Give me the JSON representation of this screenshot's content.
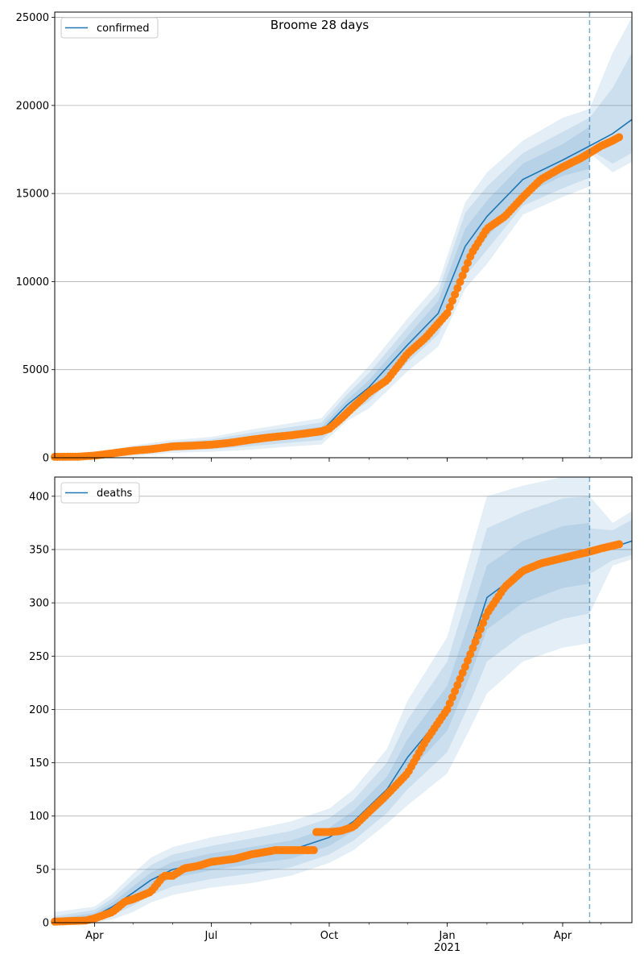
{
  "figure": {
    "title": "Broome 28 days"
  },
  "chart_data": [
    {
      "type": "line",
      "legend": "upper-left",
      "grid": "horizontal",
      "x_axis": {
        "type": "date",
        "range": [
          "2020-03-01",
          "2021-05-25"
        ],
        "tick_labels": [
          {
            "date": "2020-04-01",
            "label": "Apr"
          },
          {
            "date": "2020-07-01",
            "label": "Jul"
          },
          {
            "date": "2020-10-01",
            "label": "Oct"
          },
          {
            "date": "2021-01-01",
            "label": "Jan\n2021"
          },
          {
            "date": "2021-04-01",
            "label": "Apr"
          }
        ]
      },
      "ylim": [
        0,
        25300
      ],
      "yticks": [
        0,
        5000,
        10000,
        15000,
        20000,
        25000
      ],
      "forecast_start": "2021-04-22",
      "colors": {
        "line": "#1f77b4",
        "band": "#1f77b4",
        "observed": "#ff7f0e",
        "vline": "#1f77b4"
      },
      "series": [
        {
          "name": "confirmed",
          "kind": "model",
          "x": [
            "2020-03-01",
            "2020-04-01",
            "2020-05-01",
            "2020-06-01",
            "2020-07-01",
            "2020-08-01",
            "2020-09-01",
            "2020-09-25",
            "2020-10-15",
            "2020-11-01",
            "2020-12-01",
            "2020-12-25",
            "2021-01-15",
            "2021-02-01",
            "2021-03-01",
            "2021-04-01",
            "2021-04-22",
            "2021-05-10",
            "2021-05-25"
          ],
          "y": [
            50,
            120,
            400,
            640,
            760,
            1030,
            1300,
            1500,
            3000,
            4000,
            6400,
            8200,
            12000,
            13700,
            15800,
            16900,
            17700,
            18400,
            19200
          ],
          "bands": [
            {
              "lower": [
                0,
                80,
                300,
                520,
                620,
                840,
                1080,
                1250,
                2700,
                3600,
                5900,
                7600,
                11000,
                12500,
                14900,
                16000,
                16400,
                17300,
                18200
              ],
              "upper": [
                100,
                170,
                500,
                760,
                900,
                1220,
                1520,
                1750,
                3300,
                4400,
                6900,
                8900,
                13000,
                14600,
                16700,
                17800,
                18800,
                19600,
                20500
              ]
            },
            {
              "lower": [
                0,
                40,
                200,
                400,
                480,
                650,
                860,
                1000,
                2400,
                3200,
                5400,
                7000,
                10300,
                11800,
                14300,
                15300,
                15900,
                16700,
                17300
              ],
              "upper": [
                150,
                220,
                600,
                880,
                1040,
                1410,
                1740,
                2000,
                3600,
                4800,
                7400,
                9400,
                13900,
                15400,
                17300,
                18500,
                19300,
                20800,
                22000
              ],
              "lower_post": [
                17500,
                16700,
                17300
              ],
              "upper_post": [
                19300,
                21000,
                23000
              ]
            },
            {
              "lower": [
                0,
                0,
                100,
                280,
                340,
                460,
                640,
                750,
                2100,
                2800,
                4900,
                6300,
                9600,
                11000,
                13800,
                14800,
                15400,
                16200,
                16800
              ],
              "upper": [
                200,
                280,
                700,
                1000,
                1180,
                1600,
                1960,
                2250,
                3900,
                5200,
                7900,
                9900,
                14500,
                16200,
                18000,
                19300,
                19800,
                22000,
                25000
              ],
              "lower_post": [
                17300,
                16200,
                16800
              ],
              "upper_post": [
                19800,
                23000,
                25000
              ]
            }
          ]
        },
        {
          "name": "",
          "kind": "observed",
          "x": [
            "2020-03-01",
            "2020-03-20",
            "2020-04-01",
            "2020-04-15",
            "2020-05-01",
            "2020-05-15",
            "2020-06-01",
            "2020-06-15",
            "2020-07-01",
            "2020-07-15",
            "2020-08-01",
            "2020-08-15",
            "2020-09-01",
            "2020-09-15",
            "2020-09-25",
            "2020-10-01",
            "2020-10-10",
            "2020-10-20",
            "2020-11-01",
            "2020-11-15",
            "2020-12-01",
            "2020-12-15",
            "2021-01-01",
            "2021-01-10",
            "2021-01-20",
            "2021-02-01",
            "2021-02-15",
            "2021-03-01",
            "2021-03-15",
            "2021-04-01",
            "2021-04-15",
            "2021-04-22",
            "2021-05-01",
            "2021-05-10",
            "2021-05-15"
          ],
          "y": [
            50,
            60,
            120,
            250,
            400,
            480,
            640,
            680,
            740,
            840,
            1020,
            1150,
            1270,
            1400,
            1500,
            1650,
            2200,
            2900,
            3700,
            4400,
            5900,
            6800,
            8200,
            9800,
            11600,
            13000,
            13700,
            14800,
            15800,
            16500,
            17000,
            17300,
            17700,
            18000,
            18200
          ]
        }
      ]
    },
    {
      "type": "line",
      "legend": "upper-left",
      "grid": "horizontal",
      "x_axis": {
        "type": "date",
        "range": [
          "2020-03-01",
          "2021-05-25"
        ],
        "tick_labels": [
          {
            "date": "2020-04-01",
            "label": "Apr"
          },
          {
            "date": "2020-07-01",
            "label": "Jul"
          },
          {
            "date": "2020-10-01",
            "label": "Oct"
          },
          {
            "date": "2021-01-01",
            "label": "Jan\n2021"
          },
          {
            "date": "2021-04-01",
            "label": "Apr"
          }
        ]
      },
      "ylim": [
        0,
        418
      ],
      "yticks": [
        0,
        50,
        100,
        150,
        200,
        250,
        300,
        350,
        400
      ],
      "forecast_start": "2021-04-22",
      "colors": {
        "line": "#1f77b4",
        "band": "#1f77b4",
        "observed": "#ff7f0e",
        "vline": "#1f77b4"
      },
      "series": [
        {
          "name": "deaths",
          "kind": "model",
          "x": [
            "2020-03-01",
            "2020-04-01",
            "2020-04-15",
            "2020-05-01",
            "2020-05-15",
            "2020-06-01",
            "2020-07-01",
            "2020-08-01",
            "2020-09-01",
            "2020-10-01",
            "2020-10-20",
            "2020-11-15",
            "2020-12-01",
            "2021-01-01",
            "2021-01-20",
            "2021-02-01",
            "2021-03-01",
            "2021-04-01",
            "2021-04-22",
            "2021-05-10",
            "2021-05-25"
          ],
          "y": [
            2,
            6,
            15,
            28,
            40,
            50,
            57,
            63,
            68,
            80,
            95,
            125,
            155,
            200,
            260,
            305,
            330,
            345,
            348,
            352,
            358
          ],
          "bands": [
            {
              "lower": [
                0,
                3,
                11,
                22,
                33,
                42,
                49,
                55,
                60,
                72,
                86,
                114,
                140,
                180,
                235,
                275,
                300,
                314,
                318,
                346,
                350
              ],
              "upper": [
                4,
                9,
                19,
                34,
                47,
                57,
                65,
                71,
                77,
                89,
                105,
                137,
                172,
                222,
                290,
                335,
                358,
                372,
                375,
                360,
                368
              ]
            },
            {
              "lower": [
                0,
                1,
                7,
                16,
                26,
                34,
                41,
                46,
                52,
                64,
                77,
                103,
                125,
                160,
                210,
                245,
                270,
                285,
                290,
                340,
                345
              ],
              "upper": [
                6,
                12,
                23,
                40,
                54,
                64,
                72,
                79,
                86,
                98,
                115,
                150,
                190,
                245,
                320,
                370,
                385,
                398,
                400,
                368,
                378
              ],
              "lower_post": [
                327,
                340,
                345
              ],
              "upper_post": [
                370,
                368,
                378
              ]
            },
            {
              "lower": [
                0,
                0,
                3,
                10,
                19,
                26,
                33,
                37,
                44,
                56,
                68,
                93,
                110,
                140,
                185,
                215,
                245,
                258,
                262,
                335,
                341
              ],
              "upper": [
                10,
                15,
                27,
                46,
                61,
                71,
                80,
                87,
                95,
                107,
                125,
                163,
                208,
                268,
                350,
                400,
                410,
                418,
                418,
                375,
                386
              ],
              "lower_post": [
                290,
                335,
                341
              ],
              "upper_post": [
                400,
                375,
                386
              ]
            }
          ]
        },
        {
          "name": "",
          "kind": "observed",
          "x": [
            "2020-03-01",
            "2020-03-25",
            "2020-04-01",
            "2020-04-15",
            "2020-04-25",
            "2020-05-01",
            "2020-05-15",
            "2020-05-25",
            "2020-06-01",
            "2020-06-10",
            "2020-06-20",
            "2020-07-01",
            "2020-07-20",
            "2020-08-01",
            "2020-08-20",
            "2020-09-01",
            "2020-09-20",
            "2020-09-21",
            "2020-10-01",
            "2020-10-10",
            "2020-10-20",
            "2020-11-01",
            "2020-11-15",
            "2020-12-01",
            "2020-12-15",
            "2021-01-01",
            "2021-01-15",
            "2021-02-01",
            "2021-02-15",
            "2021-03-01",
            "2021-03-15",
            "2021-04-01",
            "2021-04-22",
            "2021-05-01",
            "2021-05-15"
          ],
          "y": [
            1,
            2,
            4,
            10,
            20,
            22,
            29,
            44,
            44,
            51,
            53,
            57,
            60,
            64,
            68,
            68,
            68,
            85,
            85,
            86,
            90,
            104,
            120,
            140,
            170,
            200,
            240,
            290,
            315,
            330,
            337,
            342,
            348,
            351,
            355
          ]
        }
      ]
    }
  ]
}
